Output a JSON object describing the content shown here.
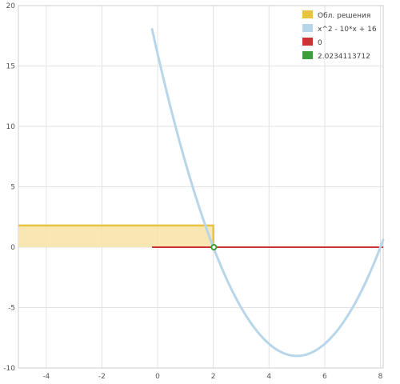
{
  "chart_data": {
    "type": "line",
    "xlim": [
      -5,
      8.1
    ],
    "ylim": [
      -10,
      20
    ],
    "x_ticks": [
      -4,
      -2,
      0,
      2,
      4,
      6,
      8
    ],
    "y_ticks": [
      -10,
      -5,
      0,
      5,
      10,
      15,
      20
    ],
    "grid": true,
    "legend_position": "top-right",
    "series": [
      {
        "name": "Обл. решения",
        "kind": "area",
        "color": "#e9c23f",
        "fill": "#f8e3a6",
        "x_range": [
          -5,
          2
        ],
        "y_range": [
          0,
          1.8
        ]
      },
      {
        "name": "x^2 - 10*x + 16",
        "kind": "function",
        "color": "#b8d6ea",
        "x_range": [
          -0.2,
          8.1
        ],
        "samples": [
          {
            "x": -0.2,
            "y": 18.04
          },
          {
            "x": 0,
            "y": 16
          },
          {
            "x": 1,
            "y": 7
          },
          {
            "x": 2,
            "y": 0
          },
          {
            "x": 3,
            "y": -5
          },
          {
            "x": 4,
            "y": -8
          },
          {
            "x": 5,
            "y": -9
          },
          {
            "x": 6,
            "y": -8
          },
          {
            "x": 7,
            "y": -5
          },
          {
            "x": 8,
            "y": 0
          }
        ]
      },
      {
        "name": "0",
        "kind": "hline",
        "color": "#cc3333",
        "x_range": [
          -0.2,
          8.1
        ],
        "y": 0
      },
      {
        "name": "2.0234113712",
        "kind": "point",
        "color": "#3d9e3d",
        "x": 2.02,
        "y": 0
      }
    ]
  }
}
